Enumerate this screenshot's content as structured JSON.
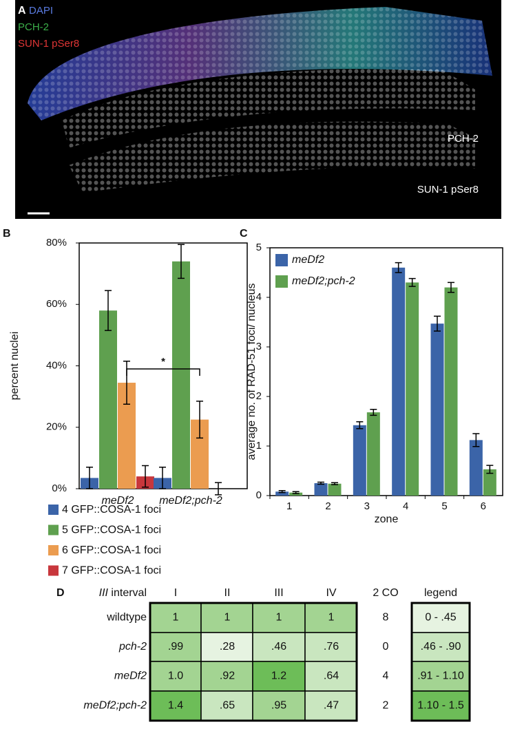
{
  "panel_labels": [
    "A",
    "B",
    "C",
    "D"
  ],
  "image": {
    "channels": [
      {
        "name": "DAPI",
        "color": "#5a7be0"
      },
      {
        "name": "PCH-2",
        "color": "#3cb04a"
      },
      {
        "name": "SUN-1 pSer8",
        "color": "#e03535"
      }
    ],
    "strip_labels": [
      "PCH-2",
      "SUN-1 pSer8"
    ]
  },
  "chart_data": [
    {
      "type": "bar",
      "ylabel": "percent nuclei",
      "categories": [
        "meDf2",
        "meDf2;pch-2"
      ],
      "series": [
        {
          "name": "4 GFP::COSA-1 foci",
          "color": "#3b64a8",
          "values": [
            3.5,
            3.5
          ],
          "errors": [
            3.5,
            3.5
          ]
        },
        {
          "name": "5 GFP::COSA-1 foci",
          "color": "#5fa04f",
          "values": [
            58,
            74
          ],
          "errors": [
            6.5,
            5.5
          ]
        },
        {
          "name": "6 GFP::COSA-1 foci",
          "color": "#eb9c50",
          "values": [
            34.5,
            22.5
          ],
          "errors": [
            7,
            6
          ]
        },
        {
          "name": "7 GFP::COSA-1 foci",
          "color": "#c8373c",
          "values": [
            4,
            0
          ],
          "errors": [
            3.5,
            2
          ]
        }
      ],
      "ylim": [
        0,
        80
      ],
      "yticks": [
        {
          "value": 0,
          "label": "0%"
        },
        {
          "value": 20,
          "label": "20%"
        },
        {
          "value": 40,
          "label": "40%"
        },
        {
          "value": 60,
          "label": "60%"
        },
        {
          "value": 80,
          "label": "80%"
        }
      ],
      "annotations": [
        "*"
      ],
      "legend": "below"
    },
    {
      "type": "bar",
      "xlabel": "zone",
      "ylabel": "average no. of RAD-51 foci/ nucleus",
      "categories": [
        "1",
        "2",
        "3",
        "4",
        "5",
        "6"
      ],
      "series": [
        {
          "name": "meDf2",
          "color": "#3b64a8",
          "values": [
            0.08,
            0.25,
            1.42,
            4.6,
            3.47,
            1.12
          ],
          "errors": [
            0.02,
            0.02,
            0.07,
            0.1,
            0.15,
            0.13
          ]
        },
        {
          "name": "meDf2;pch-2",
          "color": "#5fa04f",
          "values": [
            0.06,
            0.24,
            1.68,
            4.3,
            4.2,
            0.53
          ],
          "errors": [
            0.02,
            0.02,
            0.06,
            0.08,
            0.1,
            0.08
          ]
        }
      ],
      "ylim": [
        0,
        5
      ],
      "yticks": [
        0,
        1,
        2,
        3,
        4,
        5
      ],
      "legend": "upper left"
    }
  ],
  "table": {
    "corner": {
      "italic": "III",
      "text": "interval"
    },
    "columns": [
      "I",
      "II",
      "III",
      "IV",
      "2 CO",
      "legend"
    ],
    "rows": [
      {
        "name": "wildtype",
        "italic": false,
        "values": [
          "1",
          "1",
          "1",
          "1"
        ],
        "colors": [
          "#a3d492",
          "#a3d492",
          "#a3d492",
          "#a3d492"
        ],
        "co": "8",
        "legend": "0 - .45",
        "legend_color": "#e6f3e1"
      },
      {
        "name": "pch-2",
        "italic": true,
        "values": [
          ".99",
          ".28",
          ".46",
          ".76"
        ],
        "colors": [
          "#a3d492",
          "#e6f3e1",
          "#c9e6bf",
          "#c9e6bf"
        ],
        "co": "0",
        "legend": ".46 - .90",
        "legend_color": "#c9e6bf"
      },
      {
        "name": "meDf2",
        "italic": true,
        "values": [
          "1.0",
          ".92",
          "1.2",
          ".64"
        ],
        "colors": [
          "#a3d492",
          "#a3d492",
          "#6dbd58",
          "#c9e6bf"
        ],
        "co": "4",
        "legend": ".91 - 1.10",
        "legend_color": "#a3d492"
      },
      {
        "name": "meDf2;pch-2",
        "italic": true,
        "values": [
          "1.4",
          ".65",
          ".95",
          ".47"
        ],
        "colors": [
          "#6dbd58",
          "#c9e6bf",
          "#a3d492",
          "#c9e6bf"
        ],
        "co": "2",
        "legend": "1.10 - 1.5",
        "legend_color": "#6dbd58"
      }
    ]
  }
}
